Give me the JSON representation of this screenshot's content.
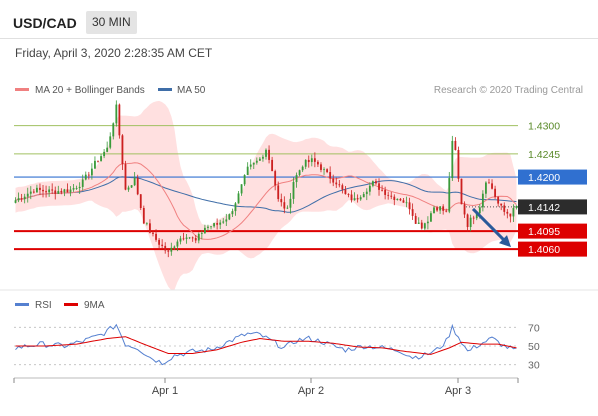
{
  "header": {
    "symbol": "USD/CAD",
    "timeframe": "30 MIN"
  },
  "chart_meta": {
    "datetime": "Friday, April 3, 2020 2:28:35 AM CET",
    "credit": "Research © 2020 Trading Central",
    "colors": {
      "bollinger_fill": "#ffd6d6",
      "ma20": "#f08080",
      "ma50": "#3f6ea8",
      "candle_up": "#3a9a3a",
      "candle_down": "#cc2020",
      "line_green": "#a0c060",
      "line_blue": "#3070d0",
      "line_red": "#dd0000",
      "arrow": "#2a5a9a",
      "rsi": "#5580d0",
      "rsi_ma": "#dd0000"
    }
  },
  "chart_data": [
    {
      "type": "candlestick",
      "legend": [
        {
          "name": "MA 20 + Bollinger Bands",
          "color": "#f08080"
        },
        {
          "name": "MA 50",
          "color": "#3f6ea8"
        }
      ],
      "price_levels": [
        {
          "value": 1.43,
          "label": "1.4300",
          "style": "green"
        },
        {
          "value": 1.4245,
          "label": "1.4245",
          "style": "green"
        },
        {
          "value": 1.42,
          "label": "1.4200",
          "style": "blue"
        },
        {
          "value": 1.4142,
          "label": "1.4142",
          "style": "current"
        },
        {
          "value": 1.4095,
          "label": "1.4095",
          "style": "red"
        },
        {
          "value": 1.406,
          "label": "1.4060",
          "style": "red"
        }
      ],
      "current_price": 1.4142,
      "ylim": [
        1.4,
        1.434
      ],
      "x_ticks": [
        "Apr 1",
        "Apr 2",
        "Apr 3"
      ],
      "forecast_arrow": {
        "from": 1.4142,
        "to": 1.406
      },
      "close_anchors": [
        [
          0,
          1.4155
        ],
        [
          6,
          1.4175
        ],
        [
          12,
          1.4172
        ],
        [
          18,
          1.4175
        ],
        [
          22,
          1.419
        ],
        [
          27,
          1.4235
        ],
        [
          30,
          1.4255
        ],
        [
          33,
          1.4335
        ],
        [
          36,
          1.4175
        ],
        [
          39,
          1.4195
        ],
        [
          42,
          1.4115
        ],
        [
          45,
          1.4085
        ],
        [
          48,
          1.4065
        ],
        [
          50,
          1.4052
        ],
        [
          53,
          1.4078
        ],
        [
          56,
          1.4088
        ],
        [
          59,
          1.4075
        ],
        [
          62,
          1.4102
        ],
        [
          66,
          1.4108
        ],
        [
          70,
          1.4125
        ],
        [
          73,
          1.4165
        ],
        [
          76,
          1.4215
        ],
        [
          80,
          1.4235
        ],
        [
          82,
          1.4255
        ],
        [
          84,
          1.4215
        ],
        [
          86,
          1.4155
        ],
        [
          89,
          1.4135
        ],
        [
          91,
          1.4192
        ],
        [
          94,
          1.4225
        ],
        [
          97,
          1.4232
        ],
        [
          99,
          1.4225
        ],
        [
          102,
          1.4205
        ],
        [
          105,
          1.419
        ],
        [
          108,
          1.4165
        ],
        [
          111,
          1.4155
        ],
        [
          114,
          1.4172
        ],
        [
          117,
          1.4188
        ],
        [
          120,
          1.4175
        ],
        [
          123,
          1.4162
        ],
        [
          126,
          1.4158
        ],
        [
          129,
          1.4142
        ],
        [
          131,
          1.4115
        ],
        [
          133,
          1.4105
        ],
        [
          135,
          1.4118
        ],
        [
          137,
          1.4142
        ],
        [
          139,
          1.414
        ],
        [
          141,
          1.413
        ],
        [
          142,
          1.42
        ],
        [
          143,
          1.4265
        ],
        [
          144,
          1.425
        ],
        [
          145,
          1.4195
        ],
        [
          146,
          1.415
        ],
        [
          148,
          1.4108
        ],
        [
          150,
          1.4125
        ],
        [
          152,
          1.4145
        ],
        [
          154,
          1.4195
        ],
        [
          156,
          1.4178
        ],
        [
          158,
          1.4148
        ],
        [
          160,
          1.4132
        ],
        [
          162,
          1.4128
        ],
        [
          164,
          1.4142
        ]
      ]
    },
    {
      "type": "line",
      "title": "RSI",
      "series": [
        {
          "name": "RSI",
          "color": "#5580d0"
        },
        {
          "name": "9MA",
          "color": "#dd0000"
        }
      ],
      "ylim": [
        20,
        80
      ],
      "y_ticks": [
        70,
        50,
        30
      ],
      "rsi_anchors": [
        [
          0,
          48
        ],
        [
          8,
          52
        ],
        [
          16,
          50
        ],
        [
          22,
          55
        ],
        [
          28,
          62
        ],
        [
          31,
          68
        ],
        [
          33,
          73
        ],
        [
          36,
          52
        ],
        [
          40,
          48
        ],
        [
          44,
          38
        ],
        [
          48,
          32
        ],
        [
          52,
          40
        ],
        [
          58,
          44
        ],
        [
          64,
          46
        ],
        [
          68,
          52
        ],
        [
          72,
          58
        ],
        [
          76,
          63
        ],
        [
          80,
          62
        ],
        [
          84,
          55
        ],
        [
          88,
          48
        ],
        [
          92,
          56
        ],
        [
          96,
          58
        ],
        [
          100,
          55
        ],
        [
          104,
          50
        ],
        [
          108,
          46
        ],
        [
          114,
          50
        ],
        [
          118,
          49
        ],
        [
          122,
          47
        ],
        [
          126,
          45
        ],
        [
          130,
          38
        ],
        [
          134,
          40
        ],
        [
          138,
          46
        ],
        [
          141,
          55
        ],
        [
          143,
          70
        ],
        [
          145,
          60
        ],
        [
          148,
          44
        ],
        [
          152,
          52
        ],
        [
          156,
          58
        ],
        [
          160,
          50
        ],
        [
          164,
          45
        ]
      ],
      "ma_anchors": [
        [
          0,
          50
        ],
        [
          10,
          50
        ],
        [
          20,
          52
        ],
        [
          30,
          58
        ],
        [
          36,
          60
        ],
        [
          42,
          52
        ],
        [
          50,
          42
        ],
        [
          58,
          42
        ],
        [
          66,
          46
        ],
        [
          74,
          54
        ],
        [
          80,
          58
        ],
        [
          88,
          55
        ],
        [
          96,
          55
        ],
        [
          104,
          53
        ],
        [
          112,
          49
        ],
        [
          120,
          48
        ],
        [
          128,
          44
        ],
        [
          136,
          41
        ],
        [
          142,
          48
        ],
        [
          146,
          54
        ],
        [
          152,
          52
        ],
        [
          158,
          52
        ],
        [
          164,
          48
        ]
      ]
    }
  ]
}
